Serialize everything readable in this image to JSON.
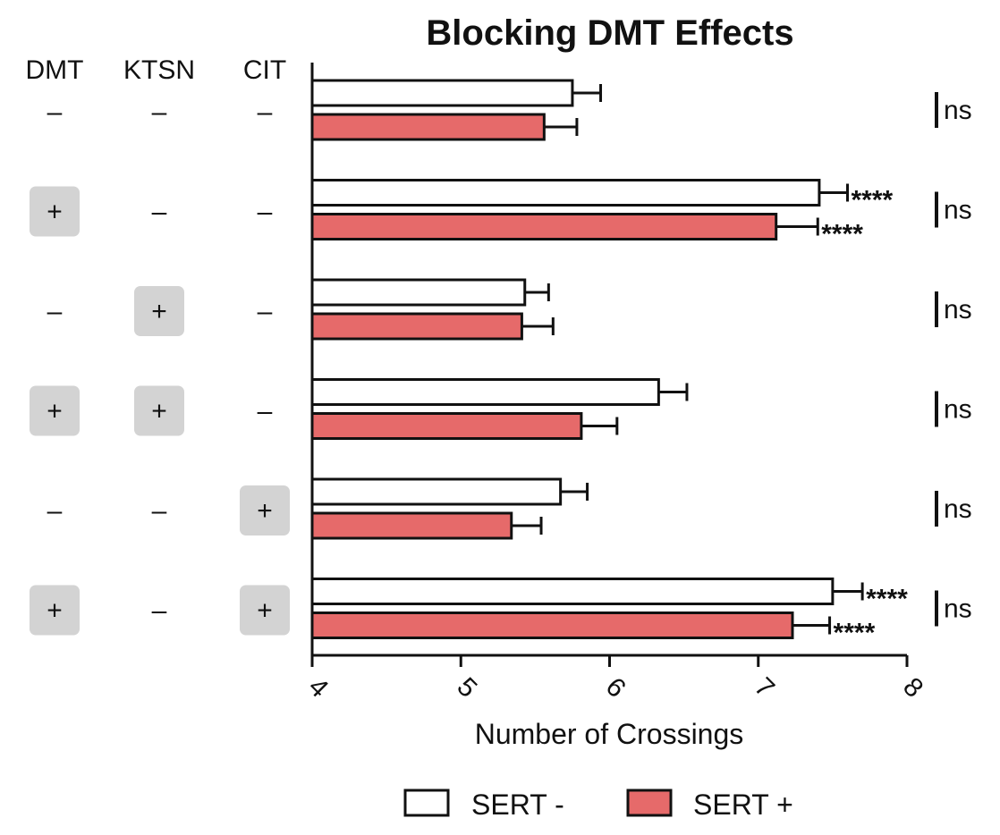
{
  "chart_data": {
    "type": "bar",
    "orientation": "horizontal",
    "title": "Blocking DMT Effects",
    "xlabel": "Number of Crossings",
    "xlim": [
      4,
      8
    ],
    "xticks": [
      "4",
      "5",
      "6",
      "7",
      "8"
    ],
    "condition_headers": [
      "DMT",
      "KTSN",
      "CIT"
    ],
    "conditions": [
      [
        "–",
        "–",
        "–"
      ],
      [
        "+",
        "–",
        "–"
      ],
      [
        "–",
        "+",
        "–"
      ],
      [
        "+",
        "+",
        "–"
      ],
      [
        "–",
        "–",
        "+"
      ],
      [
        "+",
        "–",
        "+"
      ]
    ],
    "series": [
      {
        "name": "SERT -",
        "color": "#ffffff",
        "values": [
          5.75,
          7.41,
          5.43,
          6.33,
          5.67,
          7.5
        ],
        "errors": [
          0.19,
          0.19,
          0.16,
          0.19,
          0.18,
          0.2
        ],
        "annotations": [
          "",
          "****",
          "",
          "",
          "",
          "****"
        ]
      },
      {
        "name": "SERT +",
        "color": "#e66a6a",
        "values": [
          5.56,
          7.12,
          5.41,
          5.81,
          5.34,
          7.23
        ],
        "errors": [
          0.22,
          0.28,
          0.21,
          0.24,
          0.2,
          0.25
        ],
        "annotations": [
          "",
          "****",
          "",
          "",
          "",
          "****"
        ]
      }
    ],
    "comparisons": [
      "ns",
      "ns",
      "ns",
      "ns",
      "ns",
      "ns"
    ],
    "legend_position": "bottom"
  }
}
